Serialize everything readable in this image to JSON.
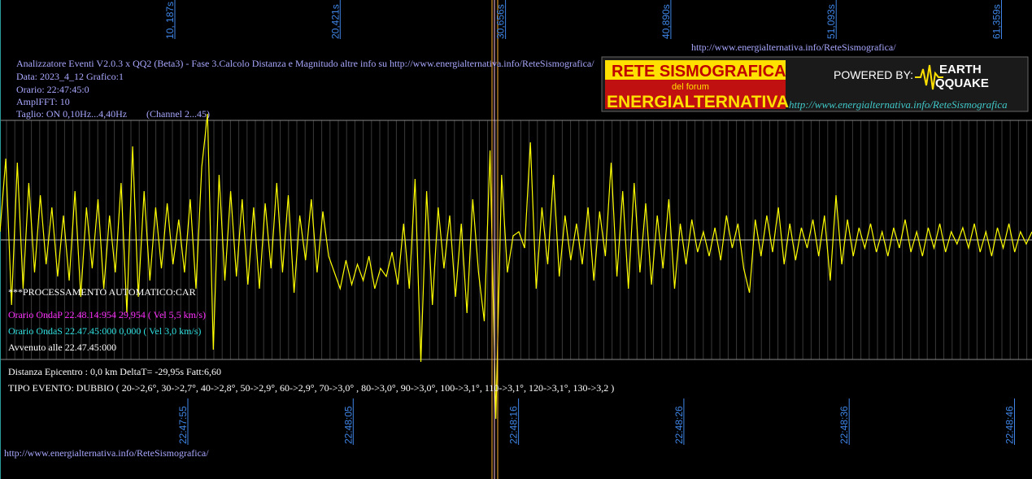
{
  "header": {
    "lines": [
      "Analizzatore Eventi V2.0.3 x QQ2 (Beta3) - Fase 3.Calcolo Distanza e Magnitudo altre info su http://www.energialternativa.info/ReteSismografica/",
      "Data: 2023_4_12 Grafico:1",
      "Orario: 22:47:45:0",
      "AmplFFT: 10",
      "Taglio: ON 0,10Hz...4,40Hz"
    ],
    "channel": "(Channel 2...45)",
    "url": "http://www.energialternativa.info/ReteSismografica/"
  },
  "logo": {
    "title": "RETE SISMOGRAFICA",
    "subtitle": "del forum",
    "name": "ENERGIALTERNATIVA",
    "powered": "POWERED BY:",
    "brand_top": "EARTH",
    "brand_bottom": "QQUAKE",
    "url": "http://www.energialternativa.info/ReteSismografica"
  },
  "top_axis": [
    "10, 187s",
    "20,421s",
    "30,656s",
    "40,890s",
    "51,093s",
    "61,359s"
  ],
  "bottom_axis": [
    "22:47:55",
    "22:48:05",
    "22:48:16",
    "22:48:26",
    "22:48:36",
    "22:48:46"
  ],
  "processing": {
    "title": "***PROCESSAMENTO AUTOMATICO:CAR",
    "onda_p": "Orario OndaP 22.48.14:954  29,954 ( Vel 5,5 km/s)",
    "onda_s": "Orario OndaS 22.47.45:000  0,000 ( Vel 3,0 km/s)",
    "avvenuto": "Avvenuto alle 22.47.45:000",
    "distanza": "Distanza Epicentro : 0,0 km DeltaT= -29,95s  Fatt:6,60",
    "tipo": "TIPO EVENTO: DUBBIO ( 20->2,6°, 30->2,7°, 40->2,8°, 50->2,9°, 60->2,9°, 70->3,0° , 80->3,0°, 90->3,0°, 100->3,1°, 110->3,1°, 120->3,1°, 130->3,2 )"
  },
  "footer_url": "http://www.energialternativa.info/ReteSismografica/",
  "trace": {
    "color": "#ffff00",
    "values": [
      10,
      100,
      -80,
      95,
      -60,
      70,
      -40,
      55,
      -30,
      40,
      -45,
      30,
      -50,
      60,
      -70,
      40,
      -35,
      50,
      -60,
      30,
      -40,
      70,
      -90,
      115,
      -70,
      60,
      -50,
      40,
      -35,
      45,
      -30,
      25,
      -40,
      50,
      -60,
      90,
      155,
      -135,
      80,
      -50,
      60,
      -45,
      50,
      -55,
      40,
      -60,
      45,
      -35,
      70,
      -40,
      55,
      -65,
      30,
      -25,
      50,
      -40,
      35,
      -20,
      -40,
      -60,
      -25,
      -55,
      -30,
      -50,
      -20,
      -60,
      -35,
      -45,
      -15,
      -55,
      20,
      -60,
      75,
      -150,
      60,
      -80,
      40,
      -35,
      30,
      -70,
      20,
      -90,
      50,
      -40,
      -100,
      110,
      -220,
      80,
      -40,
      5,
      10,
      -10,
      120,
      -60,
      40,
      -30,
      80,
      -45,
      30,
      -25,
      20,
      -30,
      40,
      -50,
      35,
      -20,
      95,
      -45,
      60,
      -60,
      70,
      -40,
      45,
      -55,
      30,
      -35,
      50,
      -60,
      20,
      -30,
      25,
      -15,
      10,
      -20,
      15,
      -25,
      30,
      -10,
      20,
      -35,
      -65,
      25,
      -20,
      30,
      -15,
      40,
      -30,
      20,
      -25,
      15,
      -10,
      25,
      -20,
      30,
      -50,
      55,
      -30,
      25,
      -20,
      15,
      -10,
      20,
      -15,
      10,
      -20,
      15,
      -10,
      25,
      -15,
      10,
      -20,
      15,
      -10,
      20,
      -15,
      10,
      -5,
      15,
      -10,
      20,
      -15,
      10,
      -20,
      15,
      -10,
      20,
      -15,
      10,
      -5,
      10
    ]
  }
}
